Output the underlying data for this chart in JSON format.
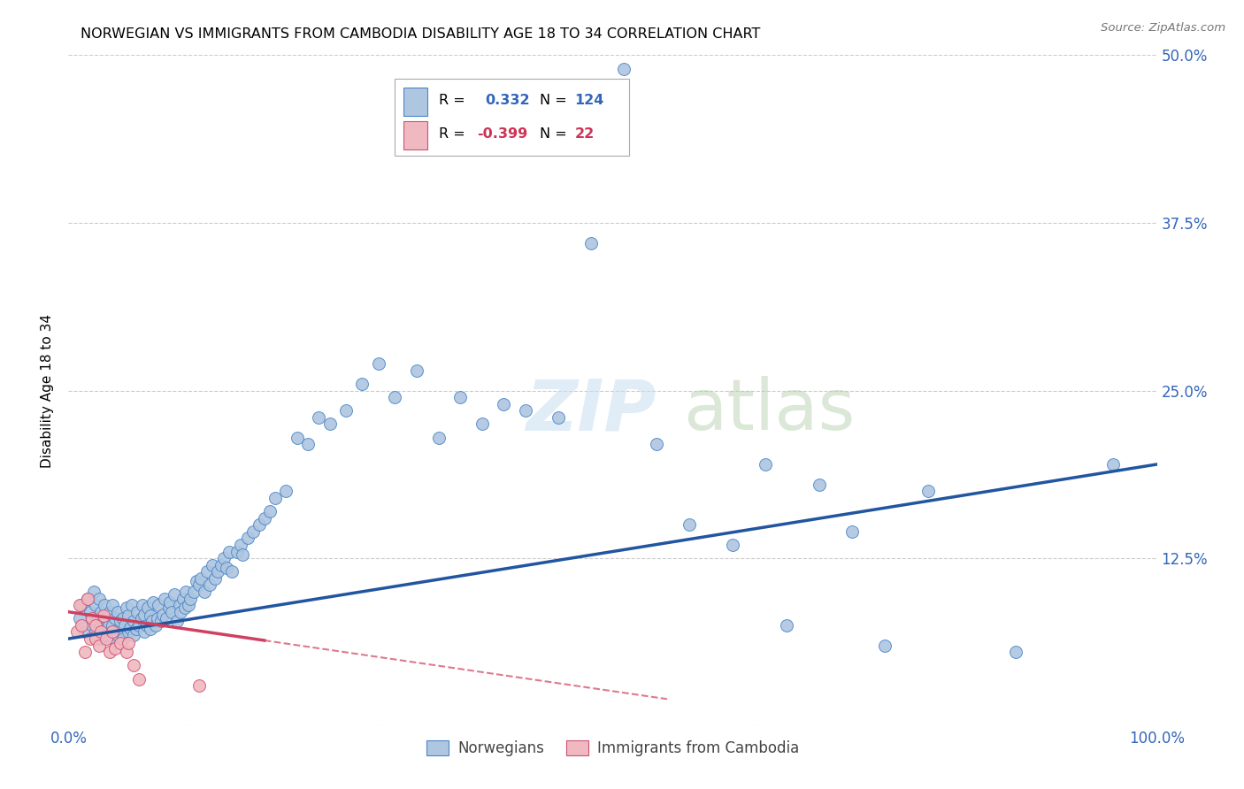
{
  "title": "NORWEGIAN VS IMMIGRANTS FROM CAMBODIA DISABILITY AGE 18 TO 34 CORRELATION CHART",
  "source": "Source: ZipAtlas.com",
  "ylabel": "Disability Age 18 to 34",
  "xlim": [
    0.0,
    1.0
  ],
  "ylim": [
    0.0,
    0.5
  ],
  "yticks": [
    0.0,
    0.125,
    0.25,
    0.375,
    0.5
  ],
  "ytick_labels": [
    "",
    "12.5%",
    "25.0%",
    "37.5%",
    "50.0%"
  ],
  "xticks": [
    0.0,
    0.25,
    0.5,
    0.75,
    1.0
  ],
  "xtick_labels": [
    "0.0%",
    "",
    "",
    "",
    "100.0%"
  ],
  "norwegian_R": 0.332,
  "norwegian_N": 124,
  "cambodia_R": -0.399,
  "cambodia_N": 22,
  "norwegian_color": "#aec6e0",
  "norwegian_edge_color": "#4a86c8",
  "cambodia_color": "#f0b8c0",
  "cambodia_edge_color": "#d05070",
  "norwegian_line_color": "#2255a0",
  "cambodia_line_color": "#d04060",
  "nor_line_x0": 0.0,
  "nor_line_y0": 0.065,
  "nor_line_x1": 1.0,
  "nor_line_y1": 0.195,
  "cam_line_x0": 0.0,
  "cam_line_y0": 0.085,
  "cam_line_x1": 0.55,
  "cam_line_y1": 0.02,
  "nor_scatter_x": [
    0.01,
    0.012,
    0.015,
    0.018,
    0.02,
    0.022,
    0.023,
    0.025,
    0.025,
    0.027,
    0.028,
    0.03,
    0.03,
    0.03,
    0.032,
    0.033,
    0.035,
    0.035,
    0.037,
    0.038,
    0.04,
    0.04,
    0.04,
    0.042,
    0.043,
    0.045,
    0.045,
    0.047,
    0.048,
    0.05,
    0.05,
    0.052,
    0.053,
    0.055,
    0.055,
    0.057,
    0.058,
    0.06,
    0.06,
    0.062,
    0.063,
    0.065,
    0.067,
    0.068,
    0.07,
    0.07,
    0.072,
    0.073,
    0.075,
    0.075,
    0.077,
    0.078,
    0.08,
    0.082,
    0.083,
    0.085,
    0.087,
    0.088,
    0.09,
    0.092,
    0.093,
    0.095,
    0.097,
    0.1,
    0.102,
    0.103,
    0.105,
    0.107,
    0.108,
    0.11,
    0.112,
    0.115,
    0.118,
    0.12,
    0.122,
    0.125,
    0.127,
    0.13,
    0.132,
    0.135,
    0.137,
    0.14,
    0.143,
    0.145,
    0.148,
    0.15,
    0.155,
    0.158,
    0.16,
    0.165,
    0.17,
    0.175,
    0.18,
    0.185,
    0.19,
    0.2,
    0.21,
    0.22,
    0.23,
    0.24,
    0.255,
    0.27,
    0.285,
    0.3,
    0.32,
    0.34,
    0.36,
    0.38,
    0.4,
    0.42,
    0.45,
    0.48,
    0.51,
    0.54,
    0.57,
    0.61,
    0.64,
    0.66,
    0.69,
    0.72,
    0.75,
    0.79,
    0.87,
    0.96
  ],
  "nor_scatter_y": [
    0.08,
    0.09,
    0.07,
    0.095,
    0.085,
    0.075,
    0.1,
    0.07,
    0.09,
    0.08,
    0.095,
    0.065,
    0.075,
    0.085,
    0.07,
    0.09,
    0.068,
    0.08,
    0.075,
    0.085,
    0.065,
    0.075,
    0.09,
    0.07,
    0.08,
    0.068,
    0.085,
    0.072,
    0.078,
    0.065,
    0.08,
    0.075,
    0.088,
    0.07,
    0.082,
    0.073,
    0.09,
    0.068,
    0.078,
    0.072,
    0.085,
    0.075,
    0.08,
    0.09,
    0.07,
    0.083,
    0.075,
    0.088,
    0.072,
    0.082,
    0.078,
    0.092,
    0.075,
    0.08,
    0.09,
    0.078,
    0.083,
    0.095,
    0.08,
    0.088,
    0.092,
    0.085,
    0.098,
    0.078,
    0.09,
    0.085,
    0.095,
    0.088,
    0.1,
    0.09,
    0.095,
    0.1,
    0.108,
    0.105,
    0.11,
    0.1,
    0.115,
    0.105,
    0.12,
    0.11,
    0.115,
    0.12,
    0.125,
    0.118,
    0.13,
    0.115,
    0.13,
    0.135,
    0.128,
    0.14,
    0.145,
    0.15,
    0.155,
    0.16,
    0.17,
    0.175,
    0.215,
    0.21,
    0.23,
    0.225,
    0.235,
    0.255,
    0.27,
    0.245,
    0.265,
    0.215,
    0.245,
    0.225,
    0.24,
    0.235,
    0.23,
    0.36,
    0.49,
    0.21,
    0.15,
    0.135,
    0.195,
    0.075,
    0.18,
    0.145,
    0.06,
    0.175,
    0.055,
    0.195
  ],
  "cam_scatter_x": [
    0.008,
    0.01,
    0.012,
    0.015,
    0.018,
    0.02,
    0.022,
    0.025,
    0.025,
    0.028,
    0.03,
    0.032,
    0.035,
    0.038,
    0.04,
    0.043,
    0.048,
    0.053,
    0.055,
    0.06,
    0.065,
    0.12
  ],
  "cam_scatter_y": [
    0.07,
    0.09,
    0.075,
    0.055,
    0.095,
    0.065,
    0.08,
    0.065,
    0.075,
    0.06,
    0.07,
    0.082,
    0.065,
    0.055,
    0.07,
    0.058,
    0.062,
    0.055,
    0.062,
    0.045,
    0.035,
    0.03
  ],
  "watermark_text1": "ZIP",
  "watermark_text2": "atlas"
}
